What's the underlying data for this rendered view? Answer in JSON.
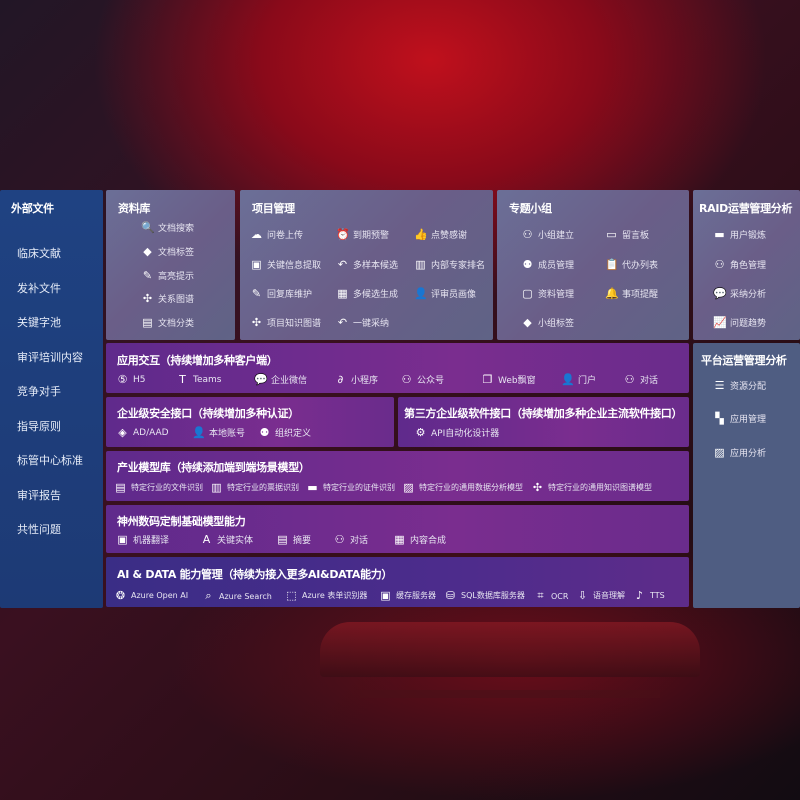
{
  "external_files": {
    "title": "外部文件",
    "items": [
      "临床文献",
      "发补文件",
      "关键字池",
      "审评培训内容",
      "竞争对手",
      "指导原则",
      "标管中心标准",
      "审评报告",
      "共性问题"
    ]
  },
  "library": {
    "title": "资料库",
    "items": [
      {
        "label": "文档搜索",
        "icon": "doc-search-icon"
      },
      {
        "label": "文档标签",
        "icon": "tag-icon"
      },
      {
        "label": "高亮提示",
        "icon": "pen-icon"
      },
      {
        "label": "关系图谱",
        "icon": "graph-icon"
      },
      {
        "label": "文档分类",
        "icon": "doc-category-icon"
      }
    ]
  },
  "project": {
    "title": "项目管理",
    "items": [
      {
        "label": "问卷上传",
        "icon": "cloud-upload-icon"
      },
      {
        "label": "到期预警",
        "icon": "alarm-icon"
      },
      {
        "label": "点赞感谢",
        "icon": "thumbs-up-icon"
      },
      {
        "label": "关键信息提取",
        "icon": "extract-icon"
      },
      {
        "label": "多样本候选",
        "icon": "reply-icon"
      },
      {
        "label": "内部专家排名",
        "icon": "ranking-icon"
      },
      {
        "label": "回复库维护",
        "icon": "edit-icon"
      },
      {
        "label": "多候选生成",
        "icon": "puzzle-icon"
      },
      {
        "label": "评审员画像",
        "icon": "user-icon"
      },
      {
        "label": "项目知识图谱",
        "icon": "graph-icon"
      },
      {
        "label": "一键采纳",
        "icon": "reply-icon"
      }
    ]
  },
  "group": {
    "title": "专题小组",
    "items": [
      {
        "label": "小组建立",
        "icon": "users-icon"
      },
      {
        "label": "留言板",
        "icon": "bbs-icon"
      },
      {
        "label": "成员管理",
        "icon": "user-add-icon"
      },
      {
        "label": "代办列表",
        "icon": "clipboard-icon"
      },
      {
        "label": "资料管理",
        "icon": "folder-icon"
      },
      {
        "label": "事项提醒",
        "icon": "bell-icon"
      },
      {
        "label": "小组标签",
        "icon": "tag-icon"
      }
    ]
  },
  "raid": {
    "title": "RAID运营管理分析",
    "items": [
      {
        "label": "用户锻炼",
        "icon": "id-card-icon"
      },
      {
        "label": "角色管理",
        "icon": "users-icon"
      },
      {
        "label": "采纳分析",
        "icon": "qa-icon"
      },
      {
        "label": "问题趋势",
        "icon": "trend-icon"
      }
    ]
  },
  "platform": {
    "title": "平台运营管理分析",
    "items": [
      {
        "label": "资源分配",
        "icon": "list-icon"
      },
      {
        "label": "应用管理",
        "icon": "apps-icon"
      },
      {
        "label": "应用分析",
        "icon": "analysis-icon"
      }
    ]
  },
  "app_interaction": {
    "title": "应用交互（持续增加多种客户端）",
    "items": [
      {
        "label": "H5",
        "icon": "html5-icon"
      },
      {
        "label": "Teams",
        "icon": "teams-icon"
      },
      {
        "label": "企业微信",
        "icon": "wecom-icon"
      },
      {
        "label": "小程序",
        "icon": "miniprogram-icon"
      },
      {
        "label": "公众号",
        "icon": "users-icon"
      },
      {
        "label": "Web飘窗",
        "icon": "window-icon"
      },
      {
        "label": "门户",
        "icon": "portal-icon"
      },
      {
        "label": "对话",
        "icon": "chat-icon"
      }
    ]
  },
  "security": {
    "title": "企业级安全接口（持续增加多种认证）",
    "items": [
      {
        "label": "AD/AAD",
        "icon": "ad-icon"
      },
      {
        "label": "本地账号",
        "icon": "account-icon"
      },
      {
        "label": "组织定义",
        "icon": "org-icon"
      }
    ]
  },
  "third_party": {
    "title": "第三方企业级软件接口（持续增加多种企业主流软件接口）",
    "items": [
      {
        "label": "API自动化设计器",
        "icon": "gear-icon"
      }
    ]
  },
  "industry_models": {
    "title": "产业模型库（持续添加端到端场景模型）",
    "items": [
      {
        "label": "特定行业的文件识别",
        "icon": "file-icon"
      },
      {
        "label": "特定行业的票据识别",
        "icon": "receipt-icon"
      },
      {
        "label": "特定行业的证件识别",
        "icon": "id-card-icon"
      },
      {
        "label": "特定行业的通用数据分析模型",
        "icon": "chart-icon"
      },
      {
        "label": "特定行业的通用知识图谱模型",
        "icon": "graph-icon"
      }
    ]
  },
  "base_models": {
    "title": "神州数码定制基础模型能力",
    "items": [
      {
        "label": "机器翻译",
        "icon": "translate-icon"
      },
      {
        "label": "关键实体",
        "icon": "entity-icon"
      },
      {
        "label": "摘要",
        "icon": "summary-icon"
      },
      {
        "label": "对话",
        "icon": "chat-icon"
      },
      {
        "label": "内容合成",
        "icon": "puzzle-icon"
      }
    ]
  },
  "ai_data": {
    "title": "AI & DATA 能力管理（持续为接入更多AI&DATA能力）",
    "items": [
      {
        "label": "Azure Open AI",
        "icon": "openai-icon"
      },
      {
        "label": "Azure Search",
        "icon": "search-icon"
      },
      {
        "label": "Azure 表单识别器",
        "icon": "form-icon"
      },
      {
        "label": "缓存服务器",
        "icon": "cache-icon"
      },
      {
        "label": "SQL数据库服务器",
        "icon": "database-icon"
      },
      {
        "label": "OCR",
        "icon": "ocr-icon"
      },
      {
        "label": "语音理解",
        "icon": "speech-icon"
      },
      {
        "label": "TTS",
        "icon": "tts-icon"
      }
    ]
  }
}
